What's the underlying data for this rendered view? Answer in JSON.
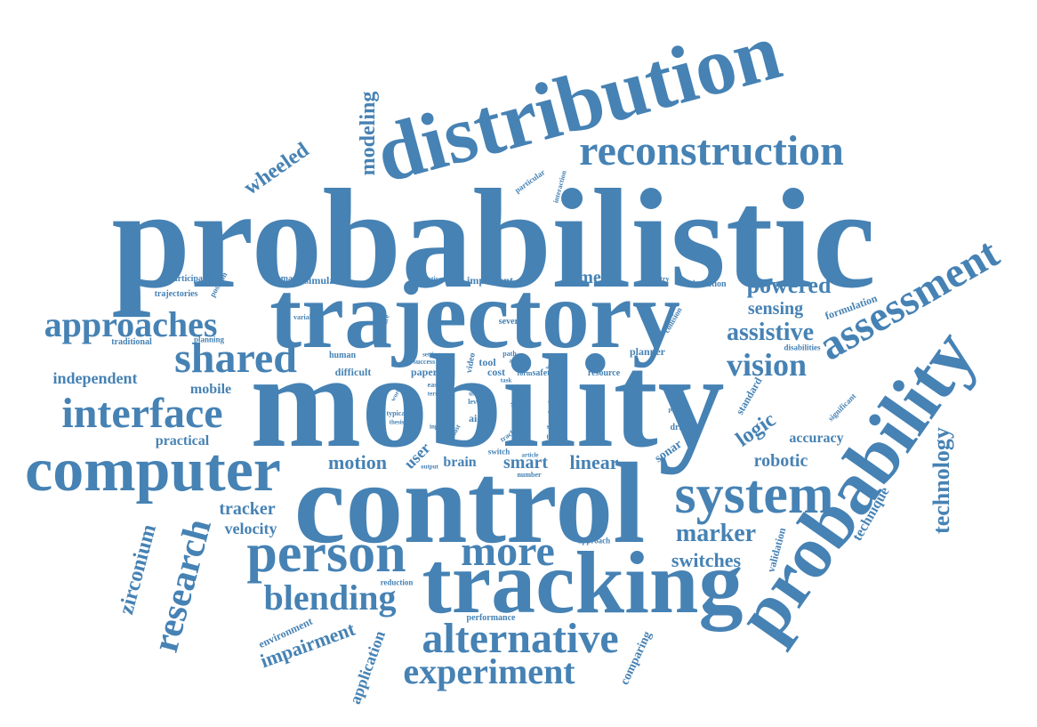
{
  "colors": {
    "word": "#4682b4",
    "background": "#ffffff"
  },
  "words": [
    "probabilistic",
    "mobility",
    "control",
    "trajectory",
    "tracking",
    "distribution",
    "probability",
    "computer",
    "system",
    "person",
    "reconstruction",
    "assessment",
    "interface",
    "alternative",
    "shared",
    "approaches",
    "experiment",
    "research",
    "blending",
    "more",
    "vision",
    "technology",
    "zirconium",
    "modeling",
    "wheeled",
    "powered",
    "assistive",
    "marker",
    "impairment",
    "switches",
    "motion",
    "smart",
    "linear",
    "logic",
    "sensing",
    "camera",
    "robotic",
    "tracker",
    "velocity",
    "independent",
    "mobile",
    "practical",
    "accuracy",
    "application",
    "technique",
    "user",
    "brain",
    "comparing",
    "sonar",
    "standard",
    "validation",
    "formulation",
    "environment",
    "simulator",
    "important",
    "command",
    "participant",
    "trajectories",
    "position",
    "traditional",
    "planning",
    "industry",
    "orientation",
    "unable",
    "severe",
    "software",
    "variable",
    "objective",
    "collision",
    "planner",
    "disabilities",
    "human",
    "difficult",
    "paper",
    "success",
    "tool",
    "path",
    "cost",
    "resource",
    "safety",
    "form",
    "robot",
    "video",
    "time",
    "aid",
    "level",
    "driving",
    "particular",
    "interaction",
    "reduction",
    "performance",
    "approach",
    "number",
    "switch",
    "article",
    "output",
    "track",
    "typical",
    "thesis",
    "world",
    "easy",
    "term",
    "setting",
    "input",
    "significant",
    "patient",
    "body",
    "safer",
    "area",
    "most",
    "use",
    "task",
    "head",
    "result",
    "work",
    "joint"
  ]
}
